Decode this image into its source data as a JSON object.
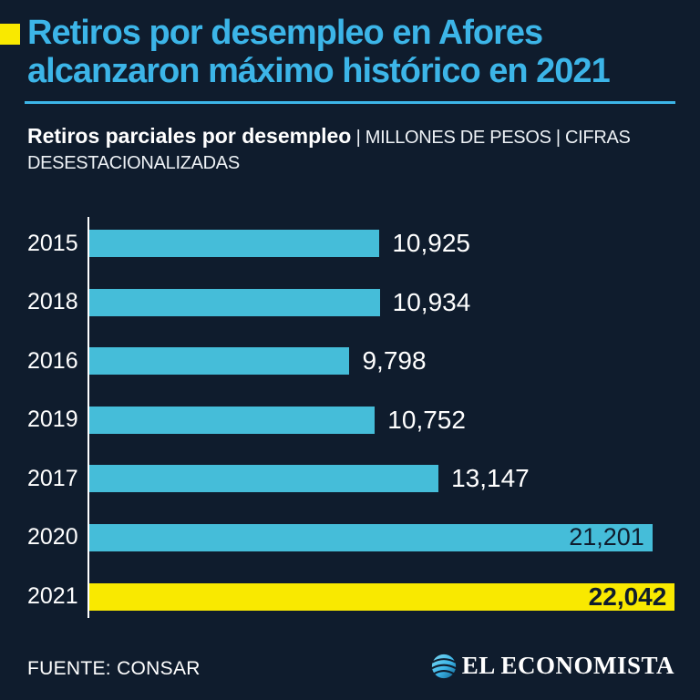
{
  "colors": {
    "background": "#0f1c2d",
    "accent_cyan": "#3cb5e8",
    "bar_cyan": "#45bdd9",
    "highlight_yellow": "#f9e900",
    "text_white": "#ffffff"
  },
  "header": {
    "title": "Retiros por desempleo en Afores alcanzaron máximo histórico en 2021",
    "subtitle_bold": "Retiros parciales por desempleo",
    "subtitle_rest": " | MILLONES DE PESOS | CIFRAS DESESTACIONALIZADAS"
  },
  "chart_data": {
    "type": "bar",
    "orientation": "horizontal",
    "title": "Retiros parciales por desempleo",
    "units": "MILLONES DE PESOS",
    "note": "CIFRAS DESESTACIONALIZADAS",
    "categories": [
      "2015",
      "2018",
      "2016",
      "2019",
      "2017",
      "2020",
      "2021"
    ],
    "values": [
      10925,
      10934,
      9798,
      10752,
      13147,
      21201,
      22042
    ],
    "value_labels": [
      "10,925",
      "10,934",
      "9,798",
      "10,752",
      "13,147",
      "21,201",
      "22,042"
    ],
    "xlim": [
      0,
      22100
    ],
    "grid": false,
    "legend": false,
    "highlight_category": "2021",
    "value_label_placement": [
      "outside",
      "outside",
      "outside",
      "outside",
      "outside",
      "inside",
      "inside"
    ]
  },
  "footer": {
    "source": "FUENTE: CONSAR",
    "brand": "EL ECONOMISTA"
  }
}
